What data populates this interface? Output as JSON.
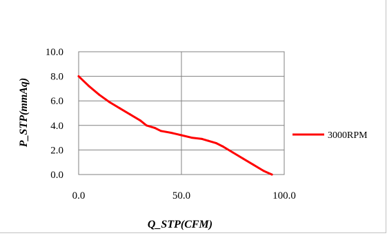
{
  "chart_data": {
    "type": "line",
    "xlabel": "Q_STP(CFM)",
    "ylabel": "P_STP(mmAq)",
    "xlim": [
      0,
      100
    ],
    "ylim": [
      0,
      10
    ],
    "x_ticks": [
      "0.0",
      "50.0",
      "100.0"
    ],
    "y_ticks": [
      "0.0",
      "2.0",
      "4.0",
      "6.0",
      "8.0",
      "10.0"
    ],
    "grid": true,
    "legend_position": "right",
    "series": [
      {
        "name": "3000RPM",
        "color": "#ff0000",
        "x": [
          0,
          5,
          10,
          15,
          20,
          25,
          30,
          33,
          37,
          40,
          45,
          50,
          55,
          60,
          63,
          67,
          70,
          75,
          80,
          85,
          90,
          94
        ],
        "y": [
          8.0,
          7.2,
          6.5,
          5.9,
          5.4,
          4.9,
          4.4,
          4.0,
          3.8,
          3.55,
          3.4,
          3.2,
          3.0,
          2.9,
          2.75,
          2.55,
          2.3,
          1.8,
          1.3,
          0.8,
          0.3,
          0.0
        ]
      }
    ]
  }
}
